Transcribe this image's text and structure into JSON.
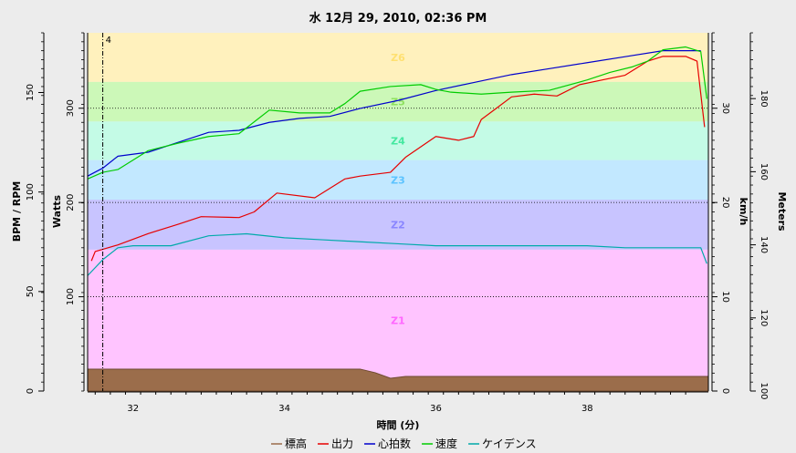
{
  "chart_data": {
    "type": "line",
    "title": "水 12月 29, 2010, 02:36 PM",
    "xlabel": "時間 (分)",
    "xlim": [
      31.4,
      39.6
    ],
    "x_ticks": [
      "32",
      "34",
      "36",
      "38"
    ],
    "marker_label": "4",
    "marker_x": 31.6,
    "axes": [
      {
        "id": "bpm",
        "label": "BPM / RPM",
        "range": [
          0,
          180
        ],
        "ticks": [
          "0",
          "50",
          "100",
          "150"
        ]
      },
      {
        "id": "watts",
        "label": "Watts",
        "range": [
          0,
          380
        ],
        "ticks": [
          "100",
          "200",
          "300"
        ]
      },
      {
        "id": "kmh",
        "label": "km/h",
        "range": [
          0,
          38
        ],
        "ticks": [
          "0",
          "10",
          "20",
          "30"
        ]
      },
      {
        "id": "meters",
        "label": "Meters",
        "range": [
          100,
          198
        ],
        "ticks": [
          "100",
          "120",
          "140",
          "160",
          "180"
        ]
      }
    ],
    "zones": [
      {
        "label": "Z1",
        "from": 0,
        "to": 150,
        "color": "#ffc4ff",
        "text_color": "#ff66ff"
      },
      {
        "label": "Z2",
        "from": 150,
        "to": 203,
        "color": "#c8c4ff",
        "text_color": "#8a86ff"
      },
      {
        "label": "Z3",
        "from": 203,
        "to": 245,
        "color": "#c2e8ff",
        "text_color": "#5cc3ff"
      },
      {
        "label": "Z4",
        "from": 245,
        "to": 286,
        "color": "#c4fbe6",
        "text_color": "#44e8a0"
      },
      {
        "label": "Z5",
        "from": 286,
        "to": 328,
        "color": "#ccf8b8",
        "text_color": "#8ee060"
      },
      {
        "label": "Z6",
        "from": 328,
        "to": 380,
        "color": "#fff1bd",
        "text_color": "#ffe070"
      }
    ],
    "series": [
      {
        "name": "標高",
        "axis": "meters",
        "color": "#9b6d4b",
        "x": [
          31.4,
          35.0,
          35.2,
          35.4,
          35.6,
          39.6
        ],
        "y": [
          106,
          106,
          105,
          103.5,
          104,
          104
        ]
      },
      {
        "name": "出力",
        "axis": "watts",
        "color": "#e60000",
        "x": [
          31.45,
          31.5,
          31.8,
          32.2,
          32.6,
          32.9,
          33.4,
          33.6,
          33.9,
          34.4,
          34.8,
          35.0,
          35.4,
          35.6,
          36.0,
          36.3,
          36.5,
          36.6,
          36.8,
          37.0,
          37.3,
          37.6,
          37.9,
          38.2,
          38.5,
          38.8,
          39.0,
          39.3,
          39.45,
          39.55
        ],
        "y": [
          138,
          148,
          155,
          167,
          177,
          185,
          184,
          190,
          210,
          205,
          225,
          228,
          232,
          248,
          270,
          266,
          270,
          288,
          300,
          312,
          315,
          313,
          325,
          330,
          335,
          350,
          355,
          355,
          350,
          280
        ]
      },
      {
        "name": "心拍数",
        "axis": "bpm",
        "color": "#0000cc",
        "x": [
          31.4,
          31.6,
          31.8,
          32.2,
          32.6,
          33.0,
          33.4,
          33.8,
          34.2,
          34.6,
          35.0,
          35.5,
          36.0,
          36.5,
          37.0,
          37.5,
          38.0,
          38.5,
          39.0,
          39.5
        ],
        "y": [
          108,
          112,
          118,
          120,
          125,
          130,
          131,
          135,
          137,
          138,
          142,
          146,
          151,
          155,
          159,
          162,
          165,
          168,
          171,
          171
        ]
      },
      {
        "name": "速度",
        "axis": "kmh",
        "color": "#00cc00",
        "x": [
          31.4,
          31.6,
          31.8,
          32.0,
          32.2,
          32.6,
          33.0,
          33.4,
          33.8,
          34.2,
          34.6,
          34.8,
          35.0,
          35.4,
          35.8,
          36.0,
          36.2,
          36.6,
          37.0,
          37.5,
          38.0,
          38.3,
          38.6,
          38.8,
          39.0,
          39.3,
          39.5,
          39.58
        ],
        "y": [
          22.5,
          23.2,
          23.5,
          24.5,
          25.5,
          26.3,
          27.0,
          27.3,
          29.8,
          29.5,
          29.5,
          30.5,
          31.8,
          32.3,
          32.5,
          32.0,
          31.7,
          31.5,
          31.7,
          31.9,
          33.0,
          33.8,
          34.4,
          35.0,
          36.2,
          36.5,
          36.0,
          31.0
        ]
      },
      {
        "name": "ケイデンス",
        "axis": "bpm",
        "color": "#00aaaa",
        "x": [
          31.4,
          31.6,
          31.8,
          32.0,
          32.5,
          33.0,
          33.5,
          34.0,
          34.5,
          35.0,
          35.5,
          36.0,
          36.5,
          37.0,
          37.5,
          38.0,
          38.5,
          39.0,
          39.5,
          39.58
        ],
        "y": [
          58,
          66,
          72,
          73,
          73,
          78,
          79,
          77,
          76,
          75,
          74,
          73,
          73,
          73,
          73,
          73,
          72,
          72,
          72,
          64
        ]
      }
    ]
  }
}
